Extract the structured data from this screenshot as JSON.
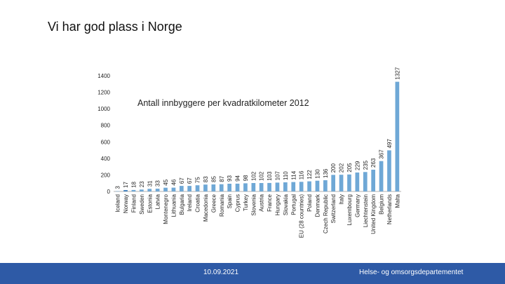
{
  "slide": {
    "title": "Vi har god plass i Norge",
    "footer_date": "10.09.2021",
    "footer_department": "Helse- og omsorgsdepartementet"
  },
  "colors": {
    "bar": "#6fa8d6",
    "bar_highlight": "#4a86c0",
    "footer": "#2e5aa6",
    "text": "#111111"
  },
  "chart_data": {
    "type": "bar",
    "title": "Antall innbyggere per kvadratkilometer 2012",
    "xlabel": "",
    "ylabel": "",
    "ylim": [
      0,
      1400
    ],
    "yticks": [
      0,
      200,
      400,
      600,
      800,
      1000,
      1200,
      1400
    ],
    "grid": false,
    "legend": "none",
    "highlight_category": "Norway",
    "categories": [
      "Iceland",
      "Norway",
      "Finland",
      "Sweden",
      "Estonia",
      "Latvia",
      "Montenegro",
      "Lithuania",
      "Bulgaria",
      "Ireland",
      "Croatia",
      "Macedonia",
      "Greece",
      "Romania",
      "Spain",
      "Cyprus",
      "Turkey",
      "Slovenia",
      "Austria",
      "France",
      "Hungary",
      "Slovakia",
      "Portugal",
      "EU (28 countries)",
      "Poland",
      "Denmark",
      "Czech Republic",
      "Switzerland",
      "Italy",
      "Luxembourg",
      "Germany",
      "Liechtenstein",
      "United Kingdom",
      "Belgium",
      "Netherlands",
      "Malta"
    ],
    "values": [
      3,
      17,
      18,
      23,
      31,
      33,
      45,
      46,
      67,
      67,
      75,
      83,
      85,
      87,
      93,
      94,
      98,
      102,
      102,
      103,
      107,
      110,
      114,
      116,
      122,
      130,
      136,
      200,
      202,
      205,
      229,
      235,
      263,
      367,
      497,
      1327
    ]
  }
}
